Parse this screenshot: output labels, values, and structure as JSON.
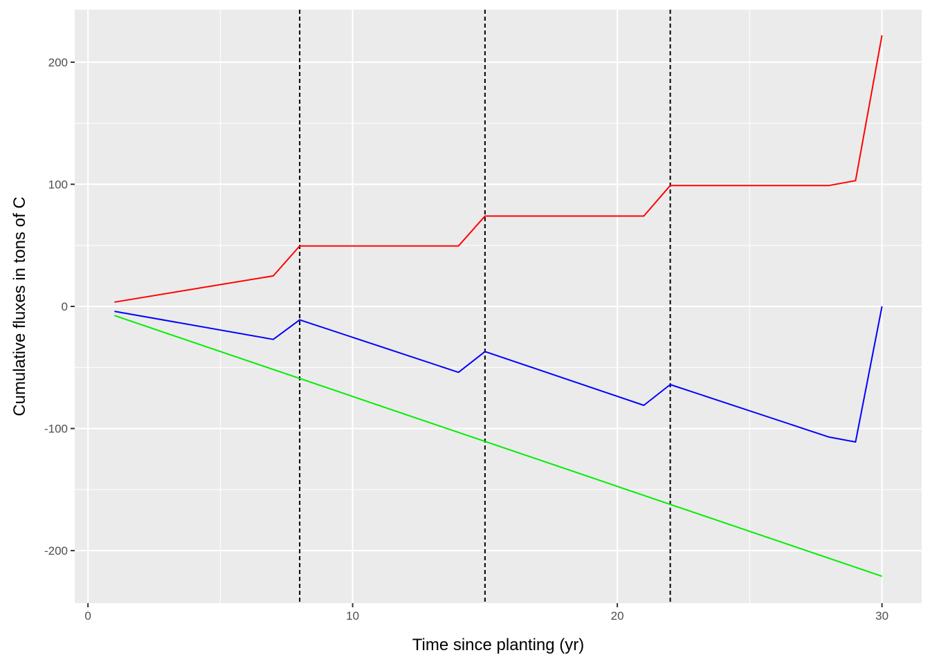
{
  "chart_data": {
    "type": "line",
    "xlabel": "Time since planting (yr)",
    "ylabel": "Cumulative fluxes in tons of C",
    "xlim": [
      -0.5,
      31.5
    ],
    "ylim": [
      -243,
      243
    ],
    "x_ticks": [
      0,
      10,
      20,
      30
    ],
    "y_ticks": [
      -200,
      -100,
      0,
      100,
      200
    ],
    "x_tick_labels": [
      "0",
      "10",
      "20",
      "30"
    ],
    "y_tick_labels": [
      "-200",
      "-100",
      "0",
      "100",
      "200"
    ],
    "grid": true,
    "panel_background": "#ebebeb",
    "grid_color": "#ffffff",
    "vlines": [
      8,
      15,
      22
    ],
    "vline_style": "dashed",
    "series": [
      {
        "color": "#ff0000",
        "x": [
          1,
          7,
          8,
          14,
          15,
          21,
          22,
          28,
          29,
          30
        ],
        "y": [
          3.5,
          25,
          49.5,
          49.5,
          74,
          74,
          99,
          99,
          103,
          222
        ]
      },
      {
        "color": "#0000ff",
        "x": [
          1,
          7,
          8,
          14,
          15,
          21,
          22,
          28,
          29,
          30
        ],
        "y": [
          -4,
          -27,
          -11,
          -54,
          -37,
          -81,
          -64,
          -107,
          -111,
          0
        ]
      },
      {
        "color": "#00ee00",
        "x": [
          1,
          30
        ],
        "y": [
          -7.5,
          -221
        ]
      }
    ]
  }
}
